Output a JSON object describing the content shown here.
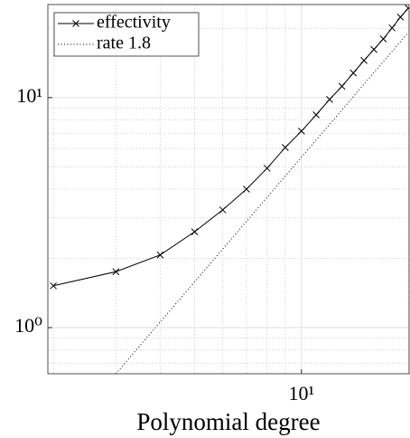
{
  "chart_data": {
    "type": "line",
    "xlabel": "Polynomial degree",
    "xscale": "log",
    "yscale": "log",
    "grid": true,
    "xlim": [
      1.93,
      20.1
    ],
    "ylim": [
      0.63,
      25.4
    ],
    "xticks": [
      {
        "value": 10,
        "label": "10¹"
      }
    ],
    "yticks": [
      {
        "value": 1,
        "label": "10⁰"
      },
      {
        "value": 10,
        "label": "10¹"
      }
    ],
    "xminorticks": [
      2,
      3,
      4,
      5,
      6,
      7,
      8,
      9,
      20
    ],
    "yminorticks": [
      0.7,
      0.8,
      0.9,
      2,
      3,
      4,
      5,
      6,
      7,
      8,
      9,
      20
    ],
    "legend": "upper left",
    "series": [
      {
        "name": "effectivity",
        "color": "#000000",
        "style": "solid",
        "marker": "x",
        "x": [
          2,
          3,
          4,
          5,
          6,
          7,
          8,
          9,
          10,
          11,
          12,
          13,
          14,
          15,
          16,
          17,
          18,
          19,
          20
        ],
        "values": [
          1.52,
          1.75,
          2.07,
          2.61,
          3.25,
          4.0,
          4.93,
          6.07,
          7.15,
          8.42,
          9.82,
          11.2,
          12.8,
          14.5,
          16.2,
          18.0,
          20.1,
          22.4,
          24.5
        ]
      },
      {
        "name": "rate 1.8",
        "color": "#000000",
        "style": "dotted",
        "marker": null,
        "x": [
          3,
          20
        ],
        "values": [
          0.63,
          19.2
        ]
      }
    ]
  }
}
